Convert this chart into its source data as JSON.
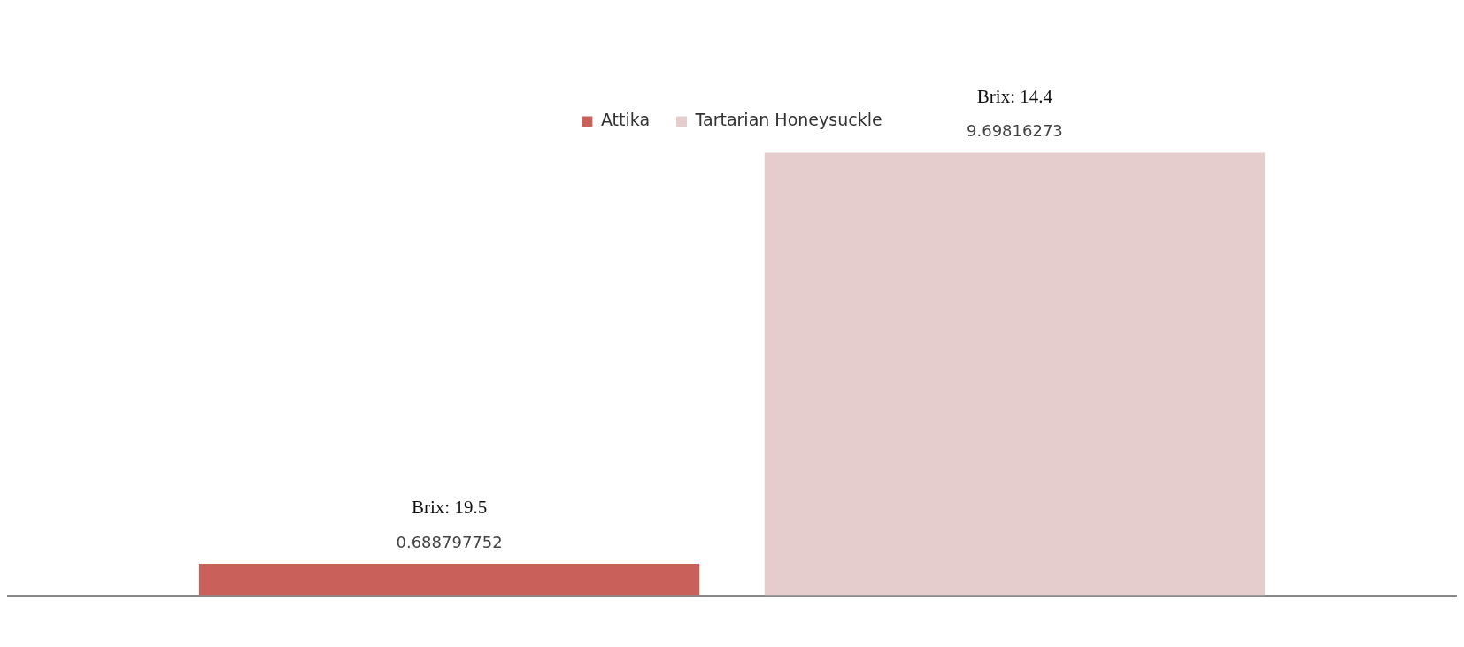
{
  "chart_data": {
    "type": "bar",
    "categories": [
      null
    ],
    "series": [
      {
        "name": "Attika",
        "color": "#c9605a",
        "values": [
          0.688797752
        ]
      },
      {
        "name": "Tartarian Honeysuckle",
        "color": "#e6cdcd",
        "values": [
          9.69816273
        ]
      }
    ],
    "annotations": [
      "Brix: 19.5",
      "Brix: 14.4"
    ],
    "grid": false,
    "legend": "top",
    "data_labels": true
  }
}
